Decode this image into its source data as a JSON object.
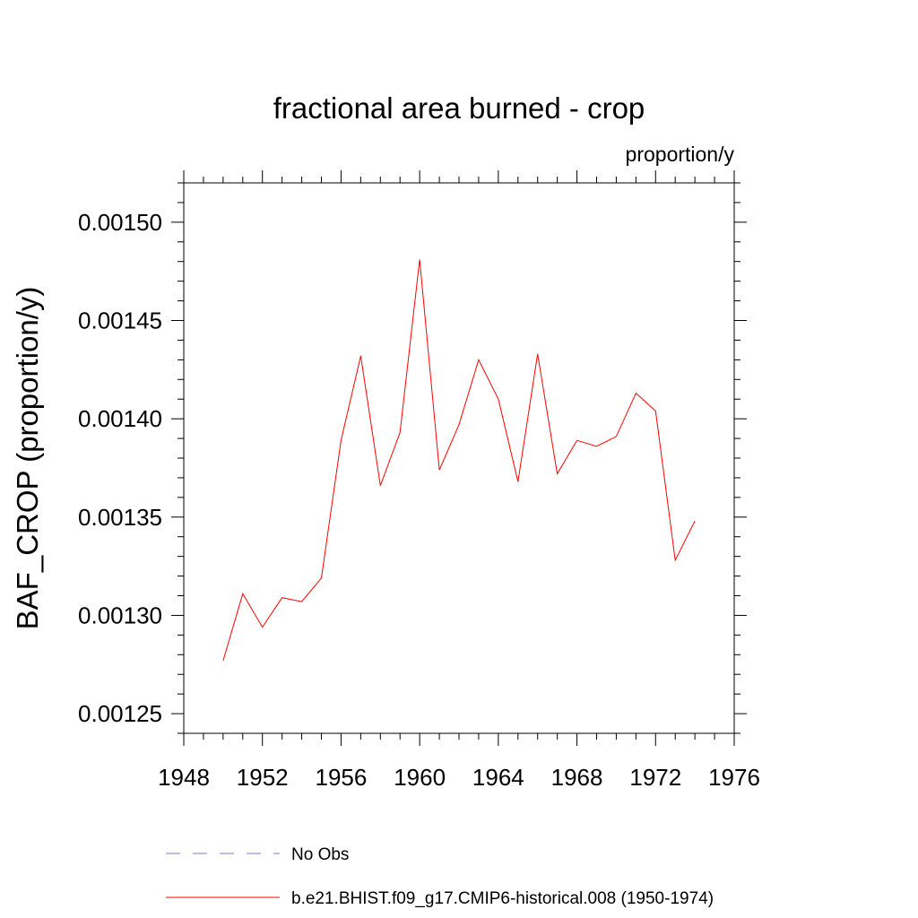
{
  "chart_data": {
    "type": "line",
    "title": "fractional area burned - crop",
    "units_label": "proportion/y",
    "ylabel": "BAF_CROP  (proportion/y)",
    "xlabel": "",
    "xlim": [
      1948,
      1976
    ],
    "ylim": [
      0.00124,
      0.00152
    ],
    "x_ticks": [
      "1948",
      "1952",
      "1956",
      "1960",
      "1964",
      "1968",
      "1972",
      "1976"
    ],
    "x_tick_values": [
      1948,
      1952,
      1956,
      1960,
      1964,
      1968,
      1972,
      1976
    ],
    "y_ticks": [
      "0.00125",
      "0.00130",
      "0.00135",
      "0.00140",
      "0.00145",
      "0.00150"
    ],
    "y_tick_values": [
      0.00125,
      0.0013,
      0.00135,
      0.0014,
      0.00145,
      0.0015
    ],
    "grid": false,
    "legend_position": "bottom",
    "series": [
      {
        "name": "b.e21.BHIST.f09_g17.CMIP6-historical.008 (1950-1974)",
        "color": "#ff0000",
        "style": "solid",
        "x": [
          1950,
          1951,
          1952,
          1953,
          1954,
          1955,
          1956,
          1957,
          1958,
          1959,
          1960,
          1961,
          1962,
          1963,
          1964,
          1965,
          1966,
          1967,
          1968,
          1969,
          1970,
          1971,
          1972,
          1973,
          1974
        ],
        "y": [
          0.001277,
          0.001311,
          0.001294,
          0.001309,
          0.001307,
          0.001319,
          0.001389,
          0.001432,
          0.001366,
          0.001393,
          0.001481,
          0.001374,
          0.001397,
          0.00143,
          0.00141,
          0.001368,
          0.001433,
          0.001372,
          0.001389,
          0.001386,
          0.001391,
          0.001413,
          0.001404,
          0.001328,
          0.001348
        ]
      }
    ],
    "legend": [
      {
        "label": "No Obs",
        "color": "#7b7bd8",
        "style": "dashed"
      },
      {
        "label": "b.e21.BHIST.f09_g17.CMIP6-historical.008 (1950-1974)",
        "color": "#ff0000",
        "style": "solid"
      }
    ]
  }
}
